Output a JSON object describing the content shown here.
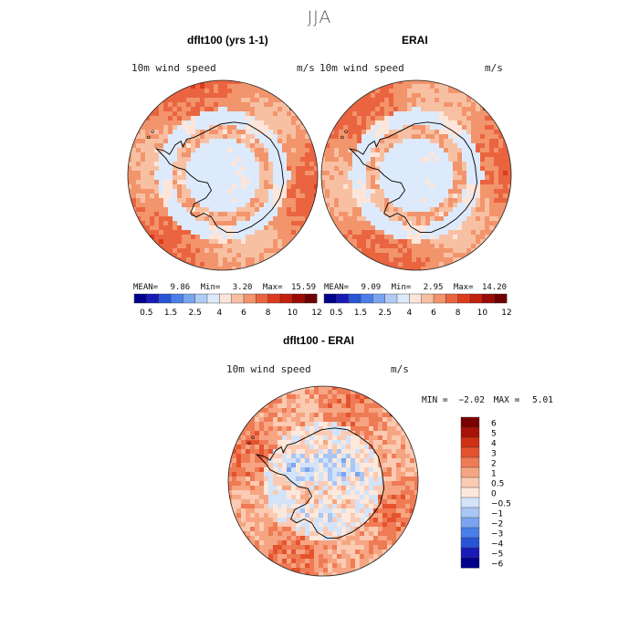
{
  "figure": {
    "season": "JJA",
    "diff_title": "dflt100 - ERAI"
  },
  "colors": {
    "abs_scale": [
      "#00008b",
      "#1a1ab8",
      "#2855d6",
      "#4a7ee8",
      "#7ba4f0",
      "#b0ccf5",
      "#ddeafb",
      "#fde6d9",
      "#f8c0a3",
      "#f2946c",
      "#ea6440",
      "#dd3b1c",
      "#c4200c",
      "#9b0b04",
      "#700000"
    ],
    "diff_scale": [
      "#00008b",
      "#1a1ab8",
      "#2855d6",
      "#4a7ee8",
      "#7ba4f0",
      "#a9c6f4",
      "#d3e3fa",
      "#fde8dc",
      "#fbcab2",
      "#f6a583",
      "#ef7b55",
      "#e4532d",
      "#cf2f12",
      "#a81208",
      "#7a0000"
    ],
    "land_outline": "#000000",
    "contour": "#f5e6dc"
  },
  "chart_data": [
    {
      "type": "heatmap",
      "projection": "south-polar-stereographic",
      "title": "dflt100 (yrs 1-1)",
      "left_label": "10m wind speed",
      "right_label": "m/s",
      "stats": {
        "mean_label": "MEAN=",
        "mean": "9.86",
        "min_label": "Min=",
        "min": "3.20",
        "max_label": "Max=",
        "max": "15.59"
      },
      "colorbar_ticks": [
        "0.5",
        "1.5",
        "2.5",
        "4",
        "6",
        "8",
        "10",
        "12"
      ]
    },
    {
      "type": "heatmap",
      "projection": "south-polar-stereographic",
      "title": "ERAI",
      "left_label": "10m wind speed",
      "right_label": "m/s",
      "stats": {
        "mean_label": "MEAN=",
        "mean": "9.09",
        "min_label": "Min=",
        "min": "2.95",
        "max_label": "Max=",
        "max": "14.20"
      },
      "colorbar_ticks": [
        "0.5",
        "1.5",
        "2.5",
        "4",
        "6",
        "8",
        "10",
        "12"
      ]
    },
    {
      "type": "heatmap",
      "projection": "south-polar-stereographic",
      "title": "dflt100 - ERAI",
      "left_label": "10m wind speed",
      "right_label": "m/s",
      "stats": {
        "min_label": "MIN =",
        "min": "−2.02",
        "max_label": "MAX =",
        "max": "5.01"
      },
      "colorbar_ticks": [
        "6",
        "5",
        "4",
        "3",
        "2",
        "1",
        "0.5",
        "0",
        "−0.5",
        "−1",
        "−2",
        "−3",
        "−4",
        "−5",
        "−6"
      ]
    }
  ]
}
